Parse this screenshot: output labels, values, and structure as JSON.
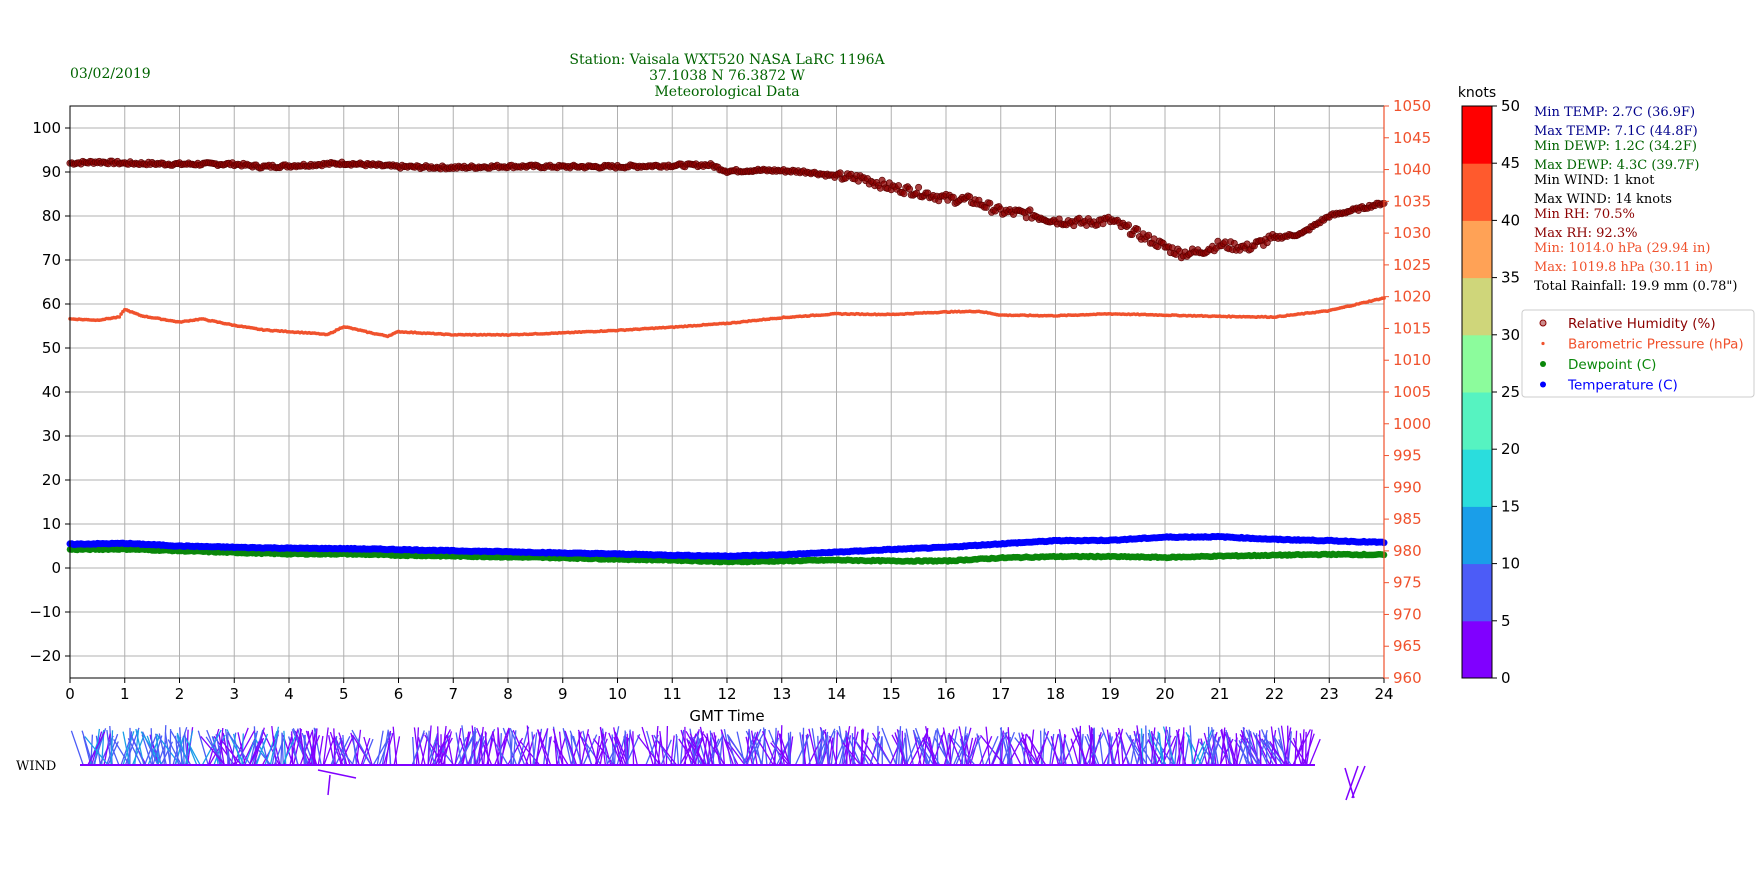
{
  "header": {
    "date": "03/02/2019",
    "station_line1": "Station:  Vaisala WXT520  NASA LaRC 1196A",
    "station_line2": "37.1038 N 76.3872 W",
    "station_line3": "Meteorological Data"
  },
  "colors": {
    "rh": "#8b0000",
    "pressure": "#f0522d",
    "dewpoint": "#0a870a",
    "temperature": "#0000ff",
    "grid": "#b0b0b0",
    "dark_blue_text": "#00008b",
    "dark_green_text": "#006400"
  },
  "stats": [
    {
      "text": "Min TEMP: 2.7C (36.9F)",
      "color": "#00008b"
    },
    {
      "text": "Max TEMP: 7.1C (44.8F)",
      "color": "#00008b"
    },
    {
      "text": "Min DEWP: 1.2C (34.2F)",
      "color": "#006400"
    },
    {
      "text": "Max DEWP: 4.3C (39.7F)",
      "color": "#006400"
    },
    {
      "text": "Min WIND: 1 knot",
      "color": "#000000"
    },
    {
      "text": "Max WIND: 14 knots",
      "color": "#000000"
    },
    {
      "text": "Min RH: 70.5%",
      "color": "#8b0000"
    },
    {
      "text": "Max RH: 92.3%",
      "color": "#8b0000"
    },
    {
      "text": "Min: 1014.0 hPa (29.94 in)",
      "color": "#f0522d"
    },
    {
      "text": "Max: 1019.8 hPa (30.11 in)",
      "color": "#f0522d"
    },
    {
      "text": "Total Rainfall: 19.9 mm (0.78\")",
      "color": "#000000"
    }
  ],
  "legend": [
    {
      "label": "Relative Humidity (%)",
      "color": "#8b0000",
      "marker": "circle-open"
    },
    {
      "label": "Barometric Pressure (hPa)",
      "color": "#f0522d",
      "marker": "dot-small"
    },
    {
      "label": "Dewpoint (C)",
      "color": "#0a870a",
      "marker": "dot"
    },
    {
      "label": "Temperature (C)",
      "color": "#0000ff",
      "marker": "dot"
    }
  ],
  "colorbar": {
    "title": "knots",
    "ticks": [
      "0",
      "5",
      "10",
      "15",
      "20",
      "25",
      "30",
      "35",
      "40",
      "45",
      "50"
    ],
    "band_colors": [
      "#8000ff",
      "#4c5cf7",
      "#1a9ee9",
      "#2adddd",
      "#56f3c1",
      "#8cfc9c",
      "#cfd67a",
      "#ffa256",
      "#ff5a2d",
      "#ff0000"
    ]
  },
  "wind_label": "WIND",
  "chart_data": {
    "type": "scatter",
    "title": "",
    "xlabel": "GMT Time",
    "x_ticks": [
      "0",
      "1",
      "2",
      "3",
      "4",
      "5",
      "6",
      "7",
      "8",
      "9",
      "10",
      "11",
      "12",
      "13",
      "14",
      "15",
      "16",
      "17",
      "18",
      "19",
      "20",
      "21",
      "22",
      "23",
      "24"
    ],
    "xlim": [
      0,
      24
    ],
    "ylim_left": [
      -25,
      105
    ],
    "y_ticks_left": [
      "100",
      "90",
      "80",
      "70",
      "60",
      "50",
      "40",
      "30",
      "20",
      "10",
      "0",
      "−10",
      "−20"
    ],
    "ylim_right": [
      960,
      1050
    ],
    "y_ticks_right": [
      "1050",
      "1045",
      "1040",
      "1035",
      "1030",
      "1025",
      "1020",
      "1015",
      "1010",
      "1005",
      "1000",
      "995",
      "990",
      "985",
      "980",
      "975",
      "970",
      "965",
      "960"
    ],
    "grid": true,
    "legend_position": "right",
    "series": [
      {
        "name": "Relative Humidity (%)",
        "axis": "left",
        "x": [
          0,
          0.5,
          1,
          2,
          3,
          3.5,
          4,
          5,
          6,
          7,
          8,
          9,
          10,
          11,
          11.7,
          12,
          12.5,
          13,
          13.5,
          14,
          14.5,
          15,
          15.5,
          16,
          16.5,
          17,
          17.5,
          18,
          18.5,
          19,
          19.5,
          20,
          20.3,
          20.6,
          21,
          21.5,
          22,
          22.5,
          23,
          23.5,
          24
        ],
        "y": [
          92,
          92.3,
          92,
          91.8,
          91.8,
          91.2,
          91.4,
          92,
          91.2,
          91,
          91.3,
          91.2,
          91.2,
          91.5,
          91.6,
          90.2,
          90.4,
          90.3,
          90,
          89,
          88.5,
          86.5,
          85.5,
          84,
          83.5,
          81,
          80.5,
          79,
          78.5,
          79,
          76,
          73,
          71.5,
          71.8,
          73.5,
          72.8,
          75,
          76,
          80,
          81.5,
          83
        ]
      },
      {
        "name": "Barometric Pressure (hPa)",
        "axis": "right",
        "x": [
          0,
          0.5,
          0.9,
          1,
          1.3,
          2,
          2.4,
          3,
          3.5,
          4,
          4.5,
          4.7,
          5,
          5.5,
          5.8,
          6,
          7,
          8,
          9,
          10,
          11,
          12,
          13,
          14,
          15,
          16,
          16.6,
          17,
          18,
          19,
          20,
          21,
          22,
          23,
          24
        ],
        "y": [
          1016.5,
          1016.3,
          1016.8,
          1018,
          1017,
          1016,
          1016.5,
          1015.5,
          1014.8,
          1014.5,
          1014.2,
          1014,
          1015.3,
          1014.3,
          1013.8,
          1014.5,
          1014,
          1014,
          1014.3,
          1014.7,
          1015.2,
          1015.8,
          1016.7,
          1017.3,
          1017.2,
          1017.6,
          1017.7,
          1017.1,
          1017,
          1017.3,
          1017.1,
          1016.9,
          1016.8,
          1017.8,
          1019.8
        ]
      },
      {
        "name": "Dewpoint (C)",
        "axis": "left",
        "x": [
          0,
          1,
          2,
          3,
          4,
          5,
          6,
          7,
          8,
          9,
          10,
          11,
          12,
          13,
          14,
          15,
          16,
          17,
          18,
          19,
          20,
          21,
          22,
          23,
          24
        ],
        "y": [
          4.2,
          4.3,
          3.9,
          3.5,
          3.2,
          3.2,
          2.9,
          2.7,
          2.5,
          2.3,
          2,
          1.8,
          1.4,
          1.6,
          1.8,
          1.6,
          1.6,
          2.3,
          2.6,
          2.6,
          2.4,
          2.7,
          2.9,
          3.1,
          3.0
        ]
      },
      {
        "name": "Temperature (C)",
        "axis": "left",
        "x": [
          0,
          1,
          2,
          3,
          4,
          5,
          6,
          7,
          8,
          9,
          10,
          11,
          12,
          13,
          14,
          15,
          16,
          17,
          18,
          19,
          20,
          21,
          22,
          23,
          24
        ],
        "y": [
          5.4,
          5.6,
          5.0,
          4.7,
          4.5,
          4.4,
          4.2,
          3.9,
          3.7,
          3.4,
          3.2,
          2.9,
          2.7,
          3.0,
          3.6,
          4.2,
          4.7,
          5.5,
          6.2,
          6.3,
          7.0,
          7.1,
          6.5,
          6.2,
          5.8
        ]
      }
    ]
  }
}
